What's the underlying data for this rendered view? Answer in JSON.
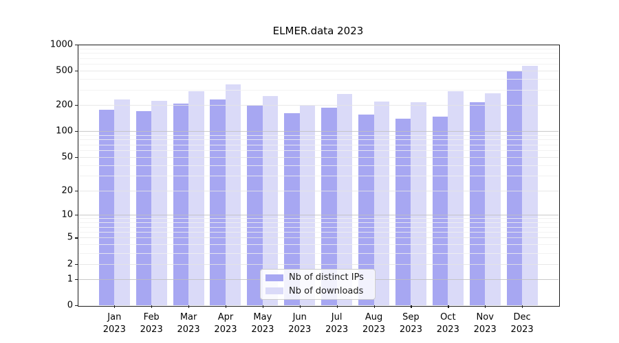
{
  "chart_data": {
    "type": "bar",
    "title": "ELMER.data 2023",
    "xlabel": "",
    "ylabel": "",
    "yscale": "log(1+y)",
    "ylim": [
      0,
      1000
    ],
    "yticks": [
      1000,
      500,
      200,
      100,
      50,
      20,
      10,
      5,
      2,
      1,
      0
    ],
    "grid": {
      "on": true,
      "decade_lines": [
        1,
        10,
        100
      ],
      "labeled_lines": [
        2,
        5,
        20,
        50,
        200,
        500
      ],
      "minor_lines": [
        3,
        4,
        6,
        7,
        8,
        9,
        30,
        40,
        60,
        70,
        80,
        90,
        300,
        400,
        600,
        700,
        800,
        900
      ]
    },
    "categories": [
      {
        "month": "Jan",
        "year": "2023"
      },
      {
        "month": "Feb",
        "year": "2023"
      },
      {
        "month": "Mar",
        "year": "2023"
      },
      {
        "month": "Apr",
        "year": "2023"
      },
      {
        "month": "May",
        "year": "2023"
      },
      {
        "month": "Jun",
        "year": "2023"
      },
      {
        "month": "Jul",
        "year": "2023"
      },
      {
        "month": "Aug",
        "year": "2023"
      },
      {
        "month": "Sep",
        "year": "2023"
      },
      {
        "month": "Oct",
        "year": "2023"
      },
      {
        "month": "Nov",
        "year": "2023"
      },
      {
        "month": "Dec",
        "year": "2023"
      }
    ],
    "series": [
      {
        "name": "Nb of distinct IPs",
        "color": "#a7a7f2",
        "values": [
          178,
          170,
          210,
          232,
          198,
          162,
          187,
          156,
          139,
          147,
          216,
          494
        ]
      },
      {
        "name": "Nb of downloads",
        "color": "#dadaf8",
        "values": [
          232,
          224,
          290,
          350,
          256,
          199,
          268,
          222,
          215,
          290,
          272,
          570
        ]
      }
    ],
    "legend_position": "lower center"
  },
  "colors": {
    "decade_grid": "#bfbfbf",
    "labeled_grid": "#e4e4e4",
    "minor_grid": "#f0f0f0",
    "spine": "#1a1a1a",
    "background": "#ffffff"
  }
}
